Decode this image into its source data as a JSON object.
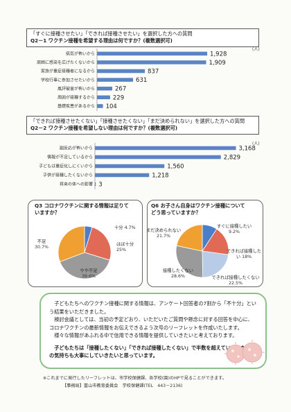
{
  "q1": {
    "line1": "「すぐに接種させたい」「できれば接種させたい」を選択した方への質問",
    "line2": "Q2－1 ワクチン接種を希望する理由は何ですか？(複数選択可)",
    "unit": "(人)"
  },
  "q2": {
    "line1": "「できれば接種させたくない」「接種させたくない」「まだ決められない」を選択した方への質問",
    "line2": "Q2－2 ワクチン接種を希望しない理由は何ですか？(複数選択可)",
    "unit": "(人)"
  },
  "q3": {
    "title": "Q3 コロナワクチンに関する情報は足りて\nいますか？"
  },
  "q6": {
    "title": "Q6 お子さん自身はワクチン接種について\nどう思っていますか？"
  },
  "message": {
    "p1": "子どもたちへのワクチン接種に関する情報は、アンケート回答者の7割から「不十分」という結果をいただきました。",
    "p2": "検討会議としては、当初の予定どおり、いただいたご質問や懸念に対する回答を中心に、コロナワクチンの最新情報をお伝えできるよう次号のリーフレットを作成いたします。",
    "p3": "様々な情報があふれる中で信用できる情報を提供していきたいと考えております。",
    "p4": "子どもたちは「接種したくない」「できれば接種したくない」で半数を超えていました。この気持ちも大事にしていきたいと思っています。"
  },
  "footer": {
    "line1": "※これまでに発行したリーフレットは、市学校保健課、各学校(園)のHPで見ることができます。",
    "line2": "【事務局】富山市教育委員会　学校保健課(TEL　443－2136)"
  },
  "colors": {
    "bar": "#5b84c4",
    "pie_blue": "#4a7fc8",
    "pie_red": "#e06a55",
    "pie_gray": "#9a9a9a",
    "pie_orange": "#f0a030",
    "pie_lightblue": "#b8cce8"
  },
  "chart_data": [
    {
      "type": "bar",
      "orientation": "horizontal",
      "categories": [
        "病気が怖いから",
        "周囲に感染を広げたくないから",
        "家族が重症接種者になるから",
        "学校行事に参加させたいから",
        "風評被害が怖いから",
        "周囲が接種するから",
        "基礎疾患があるから"
      ],
      "values": [
        1928,
        1909,
        837,
        631,
        267,
        229,
        104
      ],
      "value_labels": [
        "1,928",
        "1,909",
        "837",
        "631",
        "267",
        "229",
        "104"
      ],
      "xlim": [
        0,
        2000
      ]
    },
    {
      "type": "bar",
      "orientation": "horizontal",
      "categories": [
        "副反応が怖いから",
        "情報が不足しているから",
        "子どもは重症化しにくいから",
        "子供が接種したくないから",
        "将来の体への影響"
      ],
      "values": [
        3168,
        2829,
        1560,
        1218,
        3
      ],
      "value_labels": [
        "3,168",
        "2,829",
        "1,560",
        "1,218",
        "3"
      ],
      "xlim": [
        0,
        3300
      ]
    },
    {
      "type": "pie",
      "categories": [
        "十分",
        "ほぼ十分",
        "やや不足",
        "不足"
      ],
      "values": [
        4.7,
        25,
        39.6,
        30.7
      ],
      "labels": [
        "十分 4.7%",
        "ほぼ十分\n25%",
        "やや不足\n39.6%",
        "不足\n30.7%"
      ]
    },
    {
      "type": "pie",
      "categories": [
        "すぐに接種したい",
        "できれば接種したい",
        "できれば接種したくない",
        "接種したくない",
        "まだ決められない"
      ],
      "values": [
        9.2,
        18,
        22.5,
        28.6,
        21.7
      ],
      "labels": [
        "すぐに接種したい\n9.2%",
        "できれば接種した\nい 18%",
        "できれば接種したくない\n22.5%",
        "接種したくない\n28.6%",
        "まだ決められない\n21.7%"
      ]
    }
  ]
}
